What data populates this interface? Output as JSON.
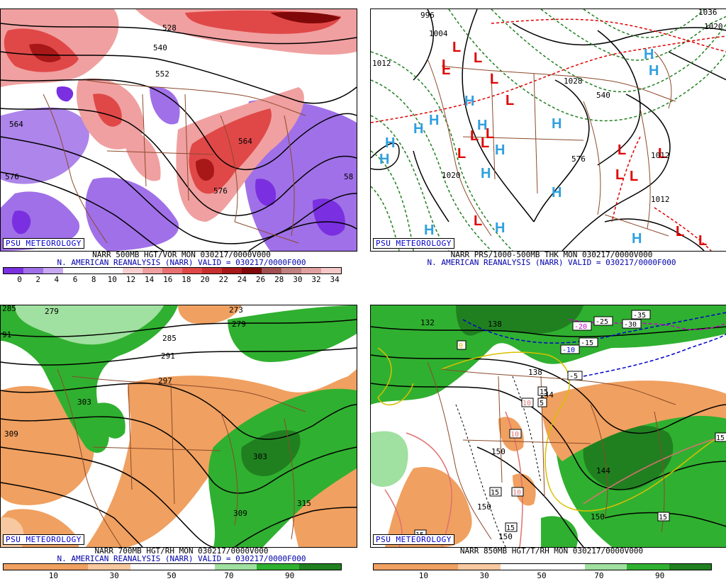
{
  "panels": [
    {
      "id": "p1",
      "caption1": "NARR 500MB HGT/VOR MON 030217/0000V000",
      "caption2": "N. AMERICAN REANALYSIS (NARR) VALID = 030217/0000F000",
      "badge": "PSU METEOROLOGY",
      "colorbar": {
        "colors": [
          "#7a30e0",
          "#a070e8",
          "#c8a8f0",
          "#ffffff",
          "#ffffff",
          "#ffffff",
          "#f8d0d0",
          "#f0a0a0",
          "#e87070",
          "#e04848",
          "#c83030",
          "#a81818",
          "#800808",
          "#a05050",
          "#c08080",
          "#e0a0a0",
          "#f4c8c8"
        ],
        "ticks": [
          "0",
          "2",
          "4",
          "6",
          "8",
          "10",
          "12",
          "14",
          "16",
          "18",
          "20",
          "22",
          "24",
          "26",
          "28",
          "30",
          "32",
          "34"
        ]
      },
      "contour_labels": [
        "528",
        "540",
        "552",
        "564",
        "576",
        "58",
        "564",
        "576"
      ]
    },
    {
      "id": "p2",
      "caption1": "NARR PRS/1000-500MB THK MON 030217/0000V000",
      "caption2": "N. AMERICAN REANALYSIS (NARR) VALID = 030217/0000F000",
      "badge": "PSU METEOROLOGY",
      "highs": [
        "H",
        "H",
        "H",
        "H",
        "H",
        "H",
        "H",
        "H",
        "H",
        "H",
        "H",
        "H",
        "H",
        "H",
        "H"
      ],
      "lows": [
        "L",
        "L",
        "L",
        "L",
        "L",
        "L",
        "L",
        "L",
        "L",
        "L",
        "L",
        "L",
        "L",
        "L",
        "L",
        "L",
        "L"
      ],
      "contour_labels": [
        "996",
        "1004",
        "1012",
        "1020",
        "1028",
        "1036",
        "1020",
        "1012",
        "1012",
        "576",
        "540"
      ]
    },
    {
      "id": "p3",
      "caption1": "NARR 700MB HGT/RH MON 030217/0000V000",
      "caption2": "N. AMERICAN REANALYSIS (NARR) VALID = 030217/0000F000",
      "badge": "PSU METEOROLOGY",
      "colorbar": {
        "colors": [
          "#f0a060",
          "#f0a060",
          "#f8c8a0",
          "#ffffff",
          "#ffffff",
          "#a0e0a0",
          "#30b030",
          "#208020"
        ],
        "ticks": [
          "10",
          "30",
          "50",
          "70",
          "90"
        ]
      },
      "contour_labels": [
        "285",
        "279",
        "273",
        "279",
        "285",
        "291",
        "297",
        "303",
        "309",
        "303",
        "309",
        "315",
        "91"
      ]
    },
    {
      "id": "p4",
      "caption1": "NARR 850MB HGT/T/RH MON 030217/0000V000",
      "caption2": "",
      "badge": "PSU METEOROLOGY",
      "colorbar": {
        "colors": [
          "#f0a060",
          "#f0a060",
          "#f8c8a0",
          "#ffffff",
          "#ffffff",
          "#a0e0a0",
          "#30b030",
          "#208020"
        ],
        "ticks": [
          "10",
          "30",
          "50",
          "70",
          "90"
        ]
      },
      "contour_labels": [
        "132",
        "138",
        "138",
        "144",
        "150",
        "150",
        "150",
        "144",
        "150",
        "-35",
        "-30",
        "-25",
        "-20",
        "-15",
        "-10",
        "-5",
        "0",
        "5",
        "10",
        "10",
        "10",
        "15",
        "15",
        "15",
        "15",
        "15",
        "15"
      ]
    }
  ]
}
